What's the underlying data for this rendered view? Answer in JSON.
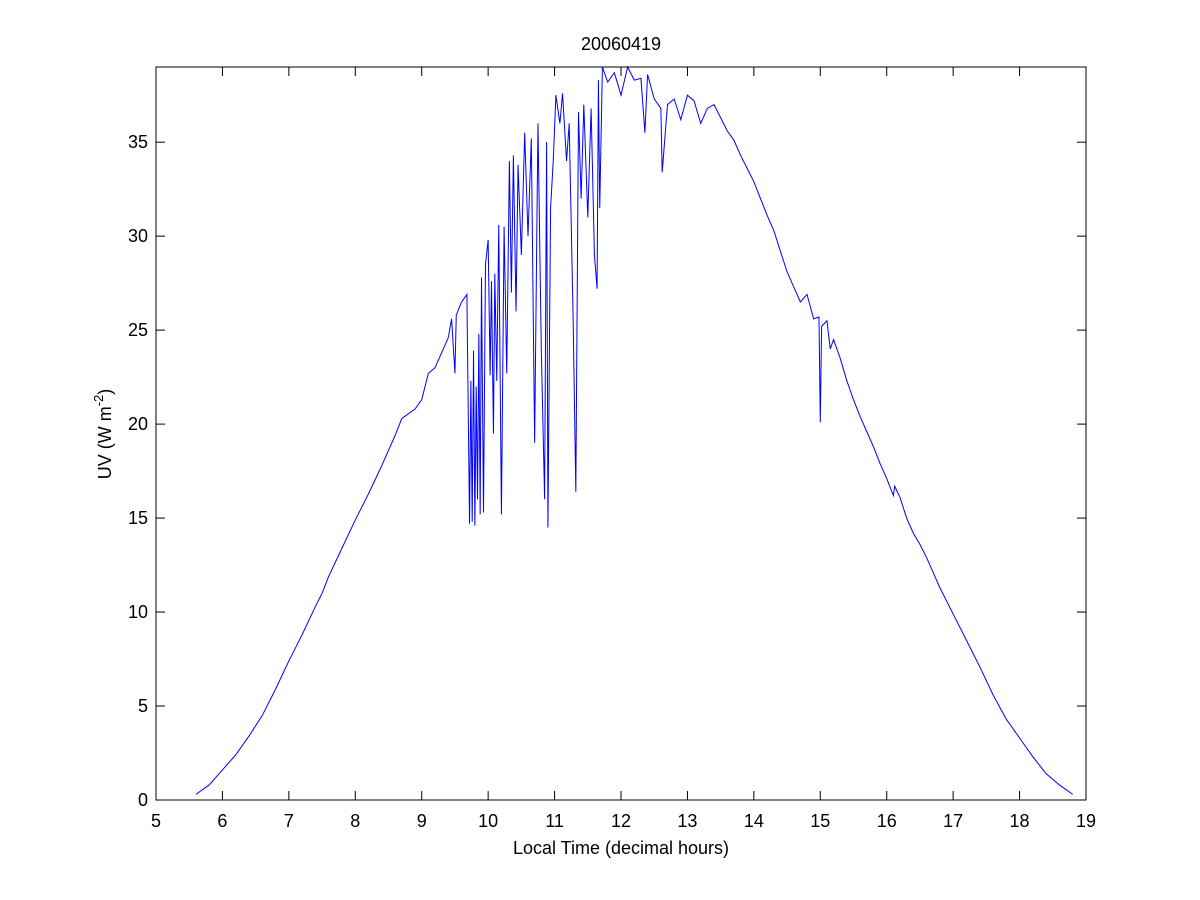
{
  "chart_data": {
    "type": "line",
    "title": "20060419",
    "xlabel": "Local Time (decimal hours)",
    "ylabel": [
      "UV (W m",
      "-2",
      ")"
    ],
    "xlim": [
      5,
      19
    ],
    "xticks": [
      5,
      6,
      7,
      8,
      9,
      10,
      11,
      12,
      13,
      14,
      15,
      16,
      17,
      18,
      19
    ],
    "ylim": [
      0,
      39
    ],
    "yticks": [
      0,
      5,
      10,
      15,
      20,
      25,
      30,
      35
    ],
    "series": [
      {
        "color": "#0000ff",
        "x": [
          5.6,
          5.8,
          6.0,
          6.2,
          6.4,
          6.6,
          6.8,
          7.0,
          7.2,
          7.4,
          7.5,
          7.6,
          7.8,
          8.0,
          8.2,
          8.4,
          8.6,
          8.7,
          8.9,
          9.0,
          9.1,
          9.2,
          9.3,
          9.4,
          9.45,
          9.5,
          9.52,
          9.6,
          9.68,
          9.72,
          9.74,
          9.76,
          9.78,
          9.8,
          9.82,
          9.84,
          9.86,
          9.88,
          9.9,
          9.93,
          9.96,
          10.0,
          10.03,
          10.05,
          10.08,
          10.1,
          10.13,
          10.16,
          10.2,
          10.24,
          10.28,
          10.32,
          10.35,
          10.38,
          10.42,
          10.45,
          10.5,
          10.55,
          10.6,
          10.65,
          10.7,
          10.75,
          10.8,
          10.85,
          10.88,
          10.9,
          10.94,
          10.98,
          11.02,
          11.08,
          11.12,
          11.18,
          11.22,
          11.28,
          11.32,
          11.36,
          11.4,
          11.44,
          11.5,
          11.55,
          11.6,
          11.64,
          11.66,
          11.68,
          11.72,
          11.8,
          11.9,
          12.0,
          12.1,
          12.2,
          12.3,
          12.36,
          12.4,
          12.5,
          12.6,
          12.62,
          12.7,
          12.8,
          12.9,
          13.0,
          13.1,
          13.2,
          13.3,
          13.4,
          13.5,
          13.6,
          13.7,
          13.8,
          13.9,
          14.0,
          14.1,
          14.2,
          14.3,
          14.4,
          14.5,
          14.6,
          14.7,
          14.8,
          14.9,
          14.98,
          15.0,
          15.02,
          15.1,
          15.15,
          15.2,
          15.3,
          15.4,
          15.5,
          15.6,
          15.7,
          15.8,
          15.9,
          16.0,
          16.1,
          16.12,
          16.2,
          16.3,
          16.4,
          16.5,
          16.6,
          16.7,
          16.8,
          17.0,
          17.2,
          17.4,
          17.6,
          17.8,
          18.0,
          18.2,
          18.4,
          18.6,
          18.8
        ],
        "values": [
          0.3,
          0.8,
          1.6,
          2.4,
          3.4,
          4.5,
          5.9,
          7.4,
          8.8,
          10.3,
          11.0,
          11.9,
          13.4,
          14.9,
          16.3,
          17.8,
          19.4,
          20.3,
          20.8,
          21.3,
          22.7,
          23.0,
          23.8,
          24.6,
          25.6,
          22.7,
          25.8,
          26.5,
          26.9,
          14.7,
          22.3,
          14.8,
          23.9,
          14.6,
          22,
          16,
          24.8,
          15.2,
          27.8,
          15.3,
          28.5,
          29.8,
          22.6,
          27.6,
          19.5,
          28,
          22.3,
          30.6,
          15.2,
          30.5,
          22.7,
          34,
          27,
          34.3,
          26,
          33.8,
          29,
          35.5,
          30,
          35.2,
          19,
          36,
          24,
          16,
          35,
          14.5,
          31.5,
          34,
          37.5,
          36,
          37.6,
          34,
          36,
          25.5,
          16.4,
          36.6,
          32,
          37,
          31,
          36.8,
          29,
          27.2,
          38.3,
          31.5,
          39,
          38.2,
          38.7,
          37.5,
          39,
          38.3,
          38.4,
          35.5,
          38.6,
          37.3,
          36.8,
          33.4,
          37,
          37.3,
          36.2,
          37.5,
          37.2,
          36.0,
          36.8,
          37.0,
          36.3,
          35.6,
          35.1,
          34.3,
          33.6,
          32.9,
          32.0,
          31.1,
          30.3,
          29.2,
          28.1,
          27.3,
          26.5,
          26.9,
          25.6,
          25.7,
          20.1,
          25.2,
          25.5,
          24.0,
          24.5,
          23.5,
          22.3,
          21.3,
          20.4,
          19.6,
          18.8,
          17.9,
          17.1,
          16.2,
          16.7,
          16.1,
          15.0,
          14.2,
          13.6,
          12.9,
          12.1,
          11.3,
          9.9,
          8.5,
          7.1,
          5.6,
          4.3,
          3.3,
          2.3,
          1.4,
          0.8,
          0.3
        ]
      }
    ]
  }
}
